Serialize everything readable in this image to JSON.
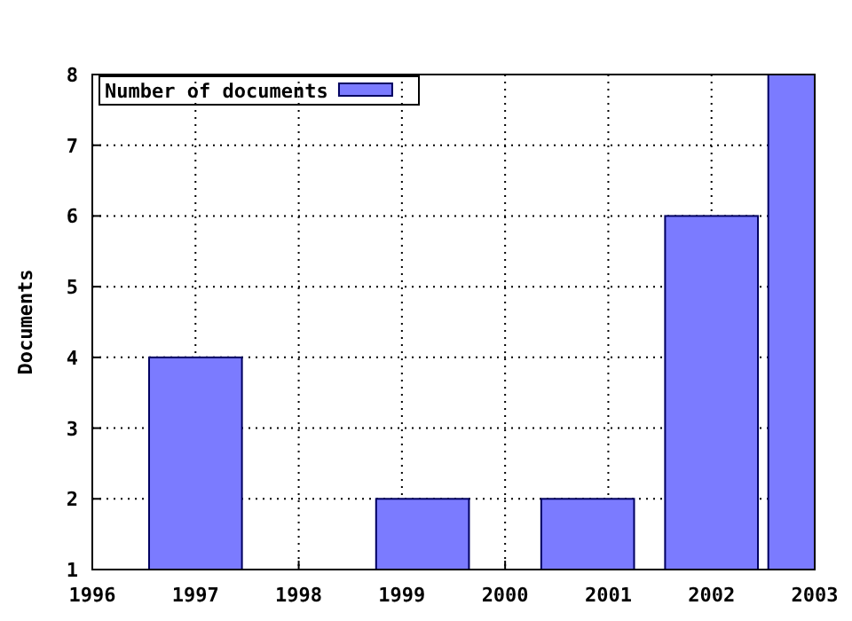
{
  "chart_data": {
    "type": "bar",
    "ylabel": "Documents",
    "x": [
      1997,
      1999.2,
      2000.8,
      2002,
      2003
    ],
    "series": [
      {
        "name": "Number of documents",
        "color": "#7b7bff",
        "values": [
          4,
          2,
          2,
          6,
          8
        ]
      }
    ],
    "xlim": [
      1996,
      2003
    ],
    "xticks": [
      1996,
      1997,
      1998,
      1999,
      2000,
      2001,
      2002,
      2003
    ],
    "ylim": [
      1,
      8
    ],
    "yticks": [
      1,
      2,
      3,
      4,
      5,
      6,
      7,
      8
    ],
    "grid": true,
    "legend": "top left"
  }
}
